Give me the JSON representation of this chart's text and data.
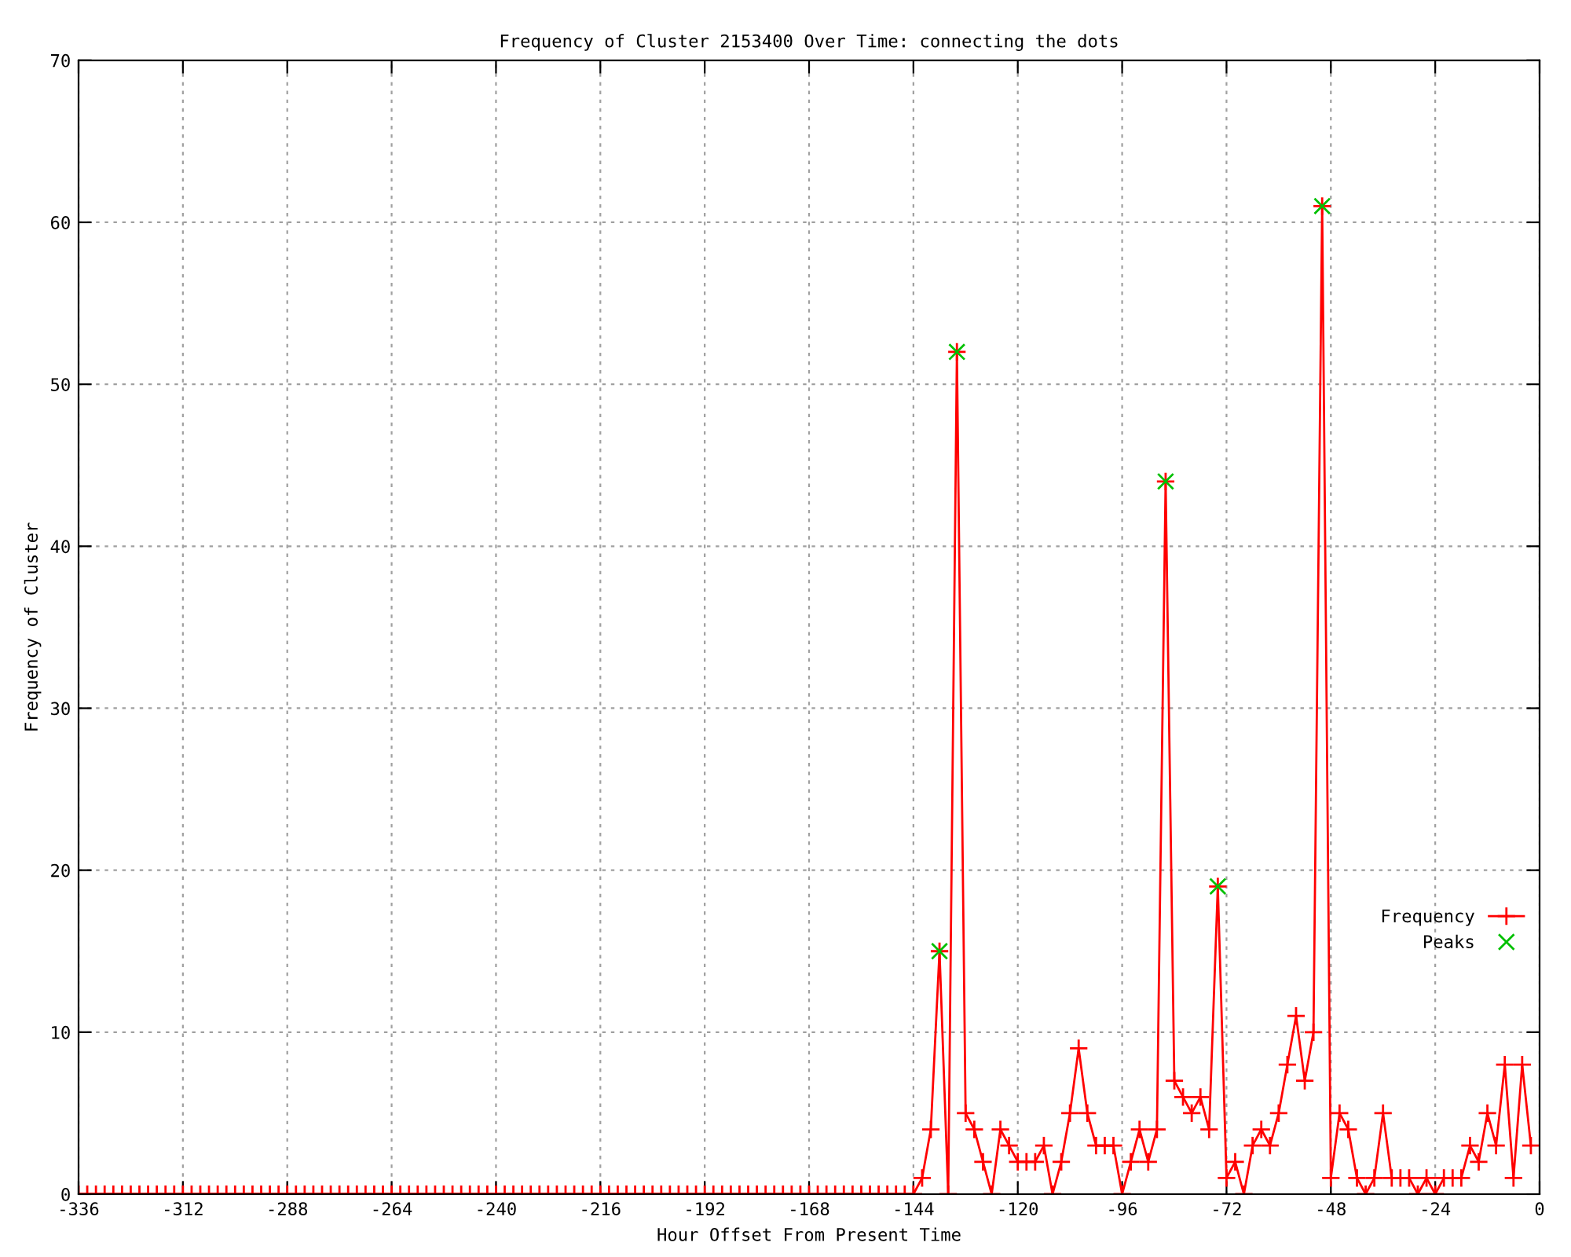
{
  "chart_data": {
    "type": "line",
    "title": "Frequency of Cluster 2153400 Over Time: connecting the dots",
    "xlabel": "Hour Offset From Present Time",
    "ylabel": "Frequency of Cluster",
    "x": [
      -336,
      -334,
      -332,
      -330,
      -328,
      -326,
      -324,
      -322,
      -320,
      -318,
      -316,
      -314,
      -312,
      -310,
      -308,
      -306,
      -304,
      -302,
      -300,
      -298,
      -296,
      -294,
      -292,
      -290,
      -288,
      -286,
      -284,
      -282,
      -280,
      -278,
      -276,
      -274,
      -272,
      -270,
      -268,
      -266,
      -264,
      -262,
      -260,
      -258,
      -256,
      -254,
      -252,
      -250,
      -248,
      -246,
      -244,
      -242,
      -240,
      -238,
      -236,
      -234,
      -232,
      -230,
      -228,
      -226,
      -224,
      -222,
      -220,
      -218,
      -216,
      -214,
      -212,
      -210,
      -208,
      -206,
      -204,
      -202,
      -200,
      -198,
      -196,
      -194,
      -192,
      -190,
      -188,
      -186,
      -184,
      -182,
      -180,
      -178,
      -176,
      -174,
      -172,
      -170,
      -168,
      -166,
      -164,
      -162,
      -160,
      -158,
      -156,
      -154,
      -152,
      -150,
      -148,
      -146,
      -144,
      -142,
      -140,
      -138,
      -136,
      -134,
      -132,
      -130,
      -128,
      -126,
      -124,
      -122,
      -120,
      -118,
      -116,
      -114,
      -112,
      -110,
      -108,
      -106,
      -104,
      -102,
      -100,
      -98,
      -96,
      -94,
      -92,
      -90,
      -88,
      -86,
      -84,
      -82,
      -80,
      -78,
      -76,
      -74,
      -72,
      -70,
      -68,
      -66,
      -64,
      -62,
      -60,
      -58,
      -56,
      -54,
      -52,
      -50,
      -48,
      -46,
      -44,
      -42,
      -40,
      -38,
      -36,
      -34,
      -32,
      -30,
      -28,
      -26,
      -24,
      -22,
      -20,
      -18,
      -16,
      -14,
      -12,
      -10,
      -8,
      -6,
      -4,
      -2
    ],
    "series": [
      {
        "name": "Frequency",
        "color": "#ff0000",
        "marker": "cross",
        "values": [
          0,
          0,
          0,
          0,
          0,
          0,
          0,
          0,
          0,
          0,
          0,
          0,
          0,
          0,
          0,
          0,
          0,
          0,
          0,
          0,
          0,
          0,
          0,
          0,
          0,
          0,
          0,
          0,
          0,
          0,
          0,
          0,
          0,
          0,
          0,
          0,
          0,
          0,
          0,
          0,
          0,
          0,
          0,
          0,
          0,
          0,
          0,
          0,
          0,
          0,
          0,
          0,
          0,
          0,
          0,
          0,
          0,
          0,
          0,
          0,
          0,
          0,
          0,
          0,
          0,
          0,
          0,
          0,
          0,
          0,
          0,
          0,
          0,
          0,
          0,
          0,
          0,
          0,
          0,
          0,
          0,
          0,
          0,
          0,
          0,
          0,
          0,
          0,
          0,
          0,
          0,
          0,
          0,
          0,
          0,
          0,
          0,
          1,
          4,
          15,
          0,
          52,
          5,
          4,
          2,
          0,
          4,
          3,
          2,
          2,
          2,
          3,
          0,
          2,
          5,
          9,
          5,
          3,
          3,
          3,
          0,
          2,
          4,
          2,
          4,
          44,
          7,
          6,
          5,
          6,
          4,
          19,
          1,
          2,
          0,
          3,
          4,
          3,
          5,
          8,
          11,
          7,
          10,
          61,
          1,
          5,
          4,
          1,
          0,
          1,
          5,
          1,
          1,
          1,
          0,
          1,
          0,
          1,
          1,
          1,
          3,
          2,
          5,
          3,
          8,
          1,
          8,
          3
        ]
      },
      {
        "name": "Peaks",
        "type": "scatter",
        "color": "#00c000",
        "marker": "cross",
        "x": [
          -138,
          -134,
          -86,
          -74,
          -50
        ],
        "values": [
          15,
          52,
          44,
          19,
          61
        ]
      }
    ],
    "xlim": [
      -336,
      0
    ],
    "xticks": [
      -336,
      -312,
      -288,
      -264,
      -240,
      -216,
      -192,
      -168,
      -144,
      -120,
      -96,
      -72,
      -48,
      -24,
      0
    ],
    "ylim": [
      0,
      70
    ],
    "yticks": [
      0,
      10,
      20,
      30,
      40,
      50,
      60,
      70
    ],
    "grid": true,
    "legend": "bottom right",
    "line_style": "solid"
  }
}
